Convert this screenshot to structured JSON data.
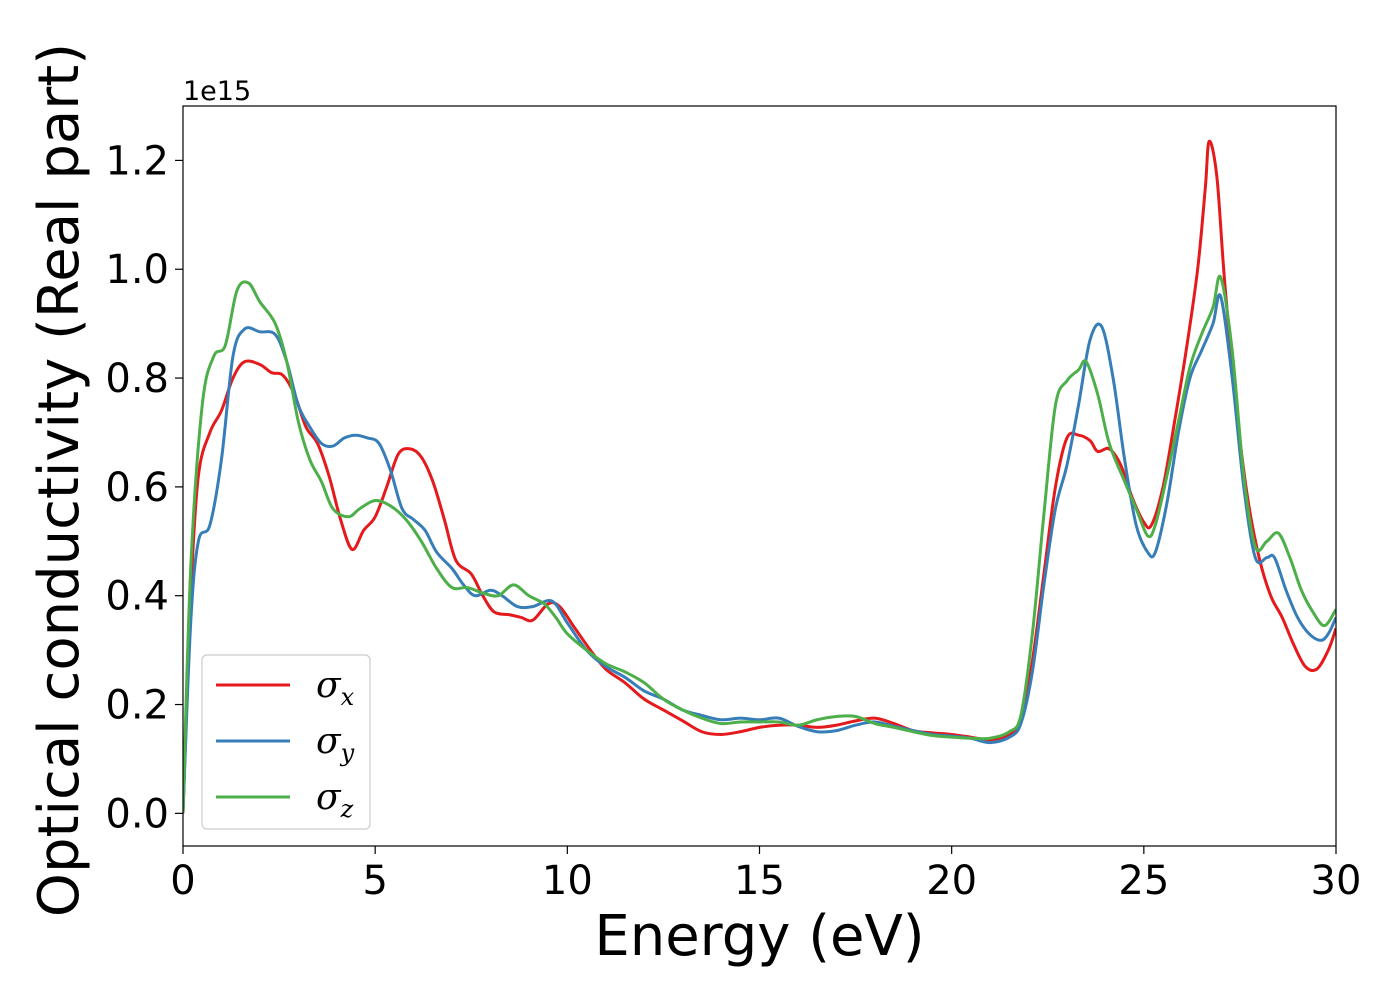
{
  "chart_data": {
    "type": "line",
    "xlabel": "Energy (eV)",
    "ylabel": "Optical conductivity (Real part)",
    "y_offset_label": "1e15",
    "xlim": [
      0,
      30
    ],
    "ylim": [
      -0.06,
      1.3
    ],
    "x_ticks": [
      0,
      5,
      10,
      15,
      20,
      25,
      30
    ],
    "y_ticks": [
      0.0,
      0.2,
      0.4,
      0.6,
      0.8,
      1.0,
      1.2
    ],
    "x_tick_labels": [
      "0",
      "5",
      "10",
      "15",
      "20",
      "25",
      "30"
    ],
    "y_tick_labels": [
      "0.0",
      "0.2",
      "0.4",
      "0.6",
      "0.8",
      "1.0",
      "1.2"
    ],
    "grid": false,
    "legend_position": "lower-left",
    "series": [
      {
        "name": "σx",
        "symbol": "σ",
        "subscript": "x",
        "color": "#e41a1c",
        "points": [
          [
            0,
            0.0
          ],
          [
            0.2,
            0.4
          ],
          [
            0.4,
            0.62
          ],
          [
            0.7,
            0.7
          ],
          [
            1.0,
            0.74
          ],
          [
            1.3,
            0.8
          ],
          [
            1.6,
            0.83
          ],
          [
            2.0,
            0.825
          ],
          [
            2.3,
            0.81
          ],
          [
            2.6,
            0.805
          ],
          [
            2.9,
            0.77
          ],
          [
            3.2,
            0.71
          ],
          [
            3.5,
            0.68
          ],
          [
            3.8,
            0.62
          ],
          [
            4.1,
            0.54
          ],
          [
            4.4,
            0.485
          ],
          [
            4.7,
            0.52
          ],
          [
            5.0,
            0.545
          ],
          [
            5.3,
            0.6
          ],
          [
            5.6,
            0.66
          ],
          [
            5.9,
            0.67
          ],
          [
            6.2,
            0.655
          ],
          [
            6.5,
            0.61
          ],
          [
            6.8,
            0.54
          ],
          [
            7.1,
            0.465
          ],
          [
            7.5,
            0.44
          ],
          [
            7.8,
            0.4
          ],
          [
            8.1,
            0.37
          ],
          [
            8.5,
            0.365
          ],
          [
            8.8,
            0.36
          ],
          [
            9.1,
            0.355
          ],
          [
            9.5,
            0.385
          ],
          [
            9.8,
            0.38
          ],
          [
            10.2,
            0.34
          ],
          [
            10.6,
            0.3
          ],
          [
            11.0,
            0.265
          ],
          [
            11.5,
            0.24
          ],
          [
            12.0,
            0.21
          ],
          [
            12.5,
            0.19
          ],
          [
            13.0,
            0.17
          ],
          [
            13.5,
            0.15
          ],
          [
            14.0,
            0.145
          ],
          [
            14.5,
            0.15
          ],
          [
            15.0,
            0.158
          ],
          [
            15.5,
            0.162
          ],
          [
            16.0,
            0.162
          ],
          [
            16.5,
            0.158
          ],
          [
            17.0,
            0.162
          ],
          [
            17.5,
            0.17
          ],
          [
            18.0,
            0.175
          ],
          [
            18.5,
            0.165
          ],
          [
            19.0,
            0.152
          ],
          [
            19.5,
            0.148
          ],
          [
            20.0,
            0.145
          ],
          [
            20.5,
            0.14
          ],
          [
            21.0,
            0.135
          ],
          [
            21.5,
            0.145
          ],
          [
            21.8,
            0.17
          ],
          [
            22.1,
            0.28
          ],
          [
            22.4,
            0.44
          ],
          [
            22.7,
            0.6
          ],
          [
            23.0,
            0.69
          ],
          [
            23.3,
            0.695
          ],
          [
            23.6,
            0.685
          ],
          [
            23.8,
            0.665
          ],
          [
            24.1,
            0.67
          ],
          [
            24.4,
            0.64
          ],
          [
            24.7,
            0.58
          ],
          [
            25.0,
            0.535
          ],
          [
            25.2,
            0.53
          ],
          [
            25.5,
            0.6
          ],
          [
            25.8,
            0.72
          ],
          [
            26.1,
            0.85
          ],
          [
            26.4,
            1.0
          ],
          [
            26.6,
            1.15
          ],
          [
            26.7,
            1.235
          ],
          [
            26.9,
            1.17
          ],
          [
            27.1,
            0.98
          ],
          [
            27.4,
            0.75
          ],
          [
            27.7,
            0.58
          ],
          [
            28.0,
            0.47
          ],
          [
            28.3,
            0.4
          ],
          [
            28.6,
            0.36
          ],
          [
            28.9,
            0.31
          ],
          [
            29.2,
            0.27
          ],
          [
            29.5,
            0.265
          ],
          [
            29.8,
            0.3
          ],
          [
            30.0,
            0.34
          ]
        ]
      },
      {
        "name": "σy",
        "symbol": "σ",
        "subscript": "y",
        "color": "#377eb8",
        "points": [
          [
            0,
            0.0
          ],
          [
            0.2,
            0.35
          ],
          [
            0.4,
            0.5
          ],
          [
            0.7,
            0.53
          ],
          [
            1.0,
            0.65
          ],
          [
            1.3,
            0.84
          ],
          [
            1.6,
            0.89
          ],
          [
            2.0,
            0.885
          ],
          [
            2.4,
            0.88
          ],
          [
            2.7,
            0.83
          ],
          [
            3.0,
            0.75
          ],
          [
            3.3,
            0.71
          ],
          [
            3.6,
            0.68
          ],
          [
            3.9,
            0.675
          ],
          [
            4.2,
            0.69
          ],
          [
            4.5,
            0.695
          ],
          [
            4.8,
            0.69
          ],
          [
            5.1,
            0.68
          ],
          [
            5.4,
            0.63
          ],
          [
            5.7,
            0.56
          ],
          [
            6.0,
            0.54
          ],
          [
            6.3,
            0.52
          ],
          [
            6.6,
            0.48
          ],
          [
            7.0,
            0.45
          ],
          [
            7.3,
            0.42
          ],
          [
            7.6,
            0.4
          ],
          [
            8.0,
            0.41
          ],
          [
            8.3,
            0.4
          ],
          [
            8.7,
            0.38
          ],
          [
            9.1,
            0.38
          ],
          [
            9.6,
            0.39
          ],
          [
            10.0,
            0.35
          ],
          [
            10.5,
            0.3
          ],
          [
            11.0,
            0.27
          ],
          [
            11.5,
            0.25
          ],
          [
            12.0,
            0.225
          ],
          [
            12.5,
            0.21
          ],
          [
            13.0,
            0.19
          ],
          [
            13.5,
            0.18
          ],
          [
            14.0,
            0.172
          ],
          [
            14.5,
            0.175
          ],
          [
            15.0,
            0.172
          ],
          [
            15.5,
            0.175
          ],
          [
            16.0,
            0.16
          ],
          [
            16.5,
            0.15
          ],
          [
            17.0,
            0.152
          ],
          [
            17.5,
            0.162
          ],
          [
            18.0,
            0.168
          ],
          [
            18.5,
            0.16
          ],
          [
            19.0,
            0.152
          ],
          [
            19.5,
            0.145
          ],
          [
            20.0,
            0.142
          ],
          [
            20.5,
            0.138
          ],
          [
            21.0,
            0.13
          ],
          [
            21.5,
            0.14
          ],
          [
            21.8,
            0.165
          ],
          [
            22.1,
            0.26
          ],
          [
            22.4,
            0.42
          ],
          [
            22.7,
            0.56
          ],
          [
            23.0,
            0.64
          ],
          [
            23.3,
            0.75
          ],
          [
            23.6,
            0.87
          ],
          [
            23.9,
            0.895
          ],
          [
            24.2,
            0.8
          ],
          [
            24.5,
            0.65
          ],
          [
            24.8,
            0.53
          ],
          [
            25.1,
            0.48
          ],
          [
            25.3,
            0.48
          ],
          [
            25.6,
            0.57
          ],
          [
            25.9,
            0.7
          ],
          [
            26.2,
            0.8
          ],
          [
            26.5,
            0.85
          ],
          [
            26.8,
            0.9
          ],
          [
            27.0,
            0.95
          ],
          [
            27.3,
            0.8
          ],
          [
            27.6,
            0.6
          ],
          [
            27.9,
            0.47
          ],
          [
            28.2,
            0.47
          ],
          [
            28.4,
            0.47
          ],
          [
            28.7,
            0.41
          ],
          [
            29.0,
            0.36
          ],
          [
            29.3,
            0.33
          ],
          [
            29.6,
            0.318
          ],
          [
            29.8,
            0.33
          ],
          [
            30.0,
            0.36
          ]
        ]
      },
      {
        "name": "σz",
        "symbol": "σ",
        "subscript": "z",
        "color": "#4daf4a",
        "points": [
          [
            0,
            0.0
          ],
          [
            0.2,
            0.45
          ],
          [
            0.5,
            0.75
          ],
          [
            0.8,
            0.84
          ],
          [
            1.1,
            0.86
          ],
          [
            1.4,
            0.96
          ],
          [
            1.7,
            0.975
          ],
          [
            2.0,
            0.94
          ],
          [
            2.4,
            0.9
          ],
          [
            2.7,
            0.83
          ],
          [
            3.0,
            0.72
          ],
          [
            3.3,
            0.65
          ],
          [
            3.6,
            0.61
          ],
          [
            3.9,
            0.56
          ],
          [
            4.3,
            0.545
          ],
          [
            4.6,
            0.56
          ],
          [
            5.0,
            0.575
          ],
          [
            5.4,
            0.565
          ],
          [
            5.8,
            0.54
          ],
          [
            6.2,
            0.5
          ],
          [
            6.6,
            0.45
          ],
          [
            7.0,
            0.415
          ],
          [
            7.4,
            0.415
          ],
          [
            7.8,
            0.405
          ],
          [
            8.2,
            0.4
          ],
          [
            8.6,
            0.42
          ],
          [
            9.0,
            0.4
          ],
          [
            9.4,
            0.385
          ],
          [
            9.7,
            0.36
          ],
          [
            10.0,
            0.33
          ],
          [
            10.5,
            0.3
          ],
          [
            11.0,
            0.275
          ],
          [
            11.5,
            0.26
          ],
          [
            12.0,
            0.24
          ],
          [
            12.5,
            0.21
          ],
          [
            13.0,
            0.19
          ],
          [
            13.5,
            0.175
          ],
          [
            14.0,
            0.165
          ],
          [
            14.5,
            0.168
          ],
          [
            15.0,
            0.168
          ],
          [
            15.5,
            0.168
          ],
          [
            16.0,
            0.162
          ],
          [
            16.5,
            0.172
          ],
          [
            17.0,
            0.178
          ],
          [
            17.5,
            0.178
          ],
          [
            18.0,
            0.165
          ],
          [
            18.5,
            0.158
          ],
          [
            19.0,
            0.15
          ],
          [
            19.5,
            0.143
          ],
          [
            20.0,
            0.14
          ],
          [
            20.5,
            0.138
          ],
          [
            21.0,
            0.138
          ],
          [
            21.5,
            0.15
          ],
          [
            21.8,
            0.18
          ],
          [
            22.1,
            0.33
          ],
          [
            22.4,
            0.55
          ],
          [
            22.7,
            0.75
          ],
          [
            23.0,
            0.795
          ],
          [
            23.3,
            0.815
          ],
          [
            23.5,
            0.83
          ],
          [
            23.8,
            0.77
          ],
          [
            24.1,
            0.68
          ],
          [
            24.5,
            0.61
          ],
          [
            24.8,
            0.56
          ],
          [
            25.1,
            0.51
          ],
          [
            25.3,
            0.53
          ],
          [
            25.6,
            0.62
          ],
          [
            25.9,
            0.72
          ],
          [
            26.2,
            0.82
          ],
          [
            26.5,
            0.88
          ],
          [
            26.8,
            0.93
          ],
          [
            27.0,
            0.985
          ],
          [
            27.3,
            0.85
          ],
          [
            27.6,
            0.62
          ],
          [
            27.9,
            0.49
          ],
          [
            28.2,
            0.5
          ],
          [
            28.5,
            0.515
          ],
          [
            28.8,
            0.47
          ],
          [
            29.1,
            0.41
          ],
          [
            29.4,
            0.37
          ],
          [
            29.7,
            0.345
          ],
          [
            30.0,
            0.375
          ]
        ]
      }
    ]
  }
}
